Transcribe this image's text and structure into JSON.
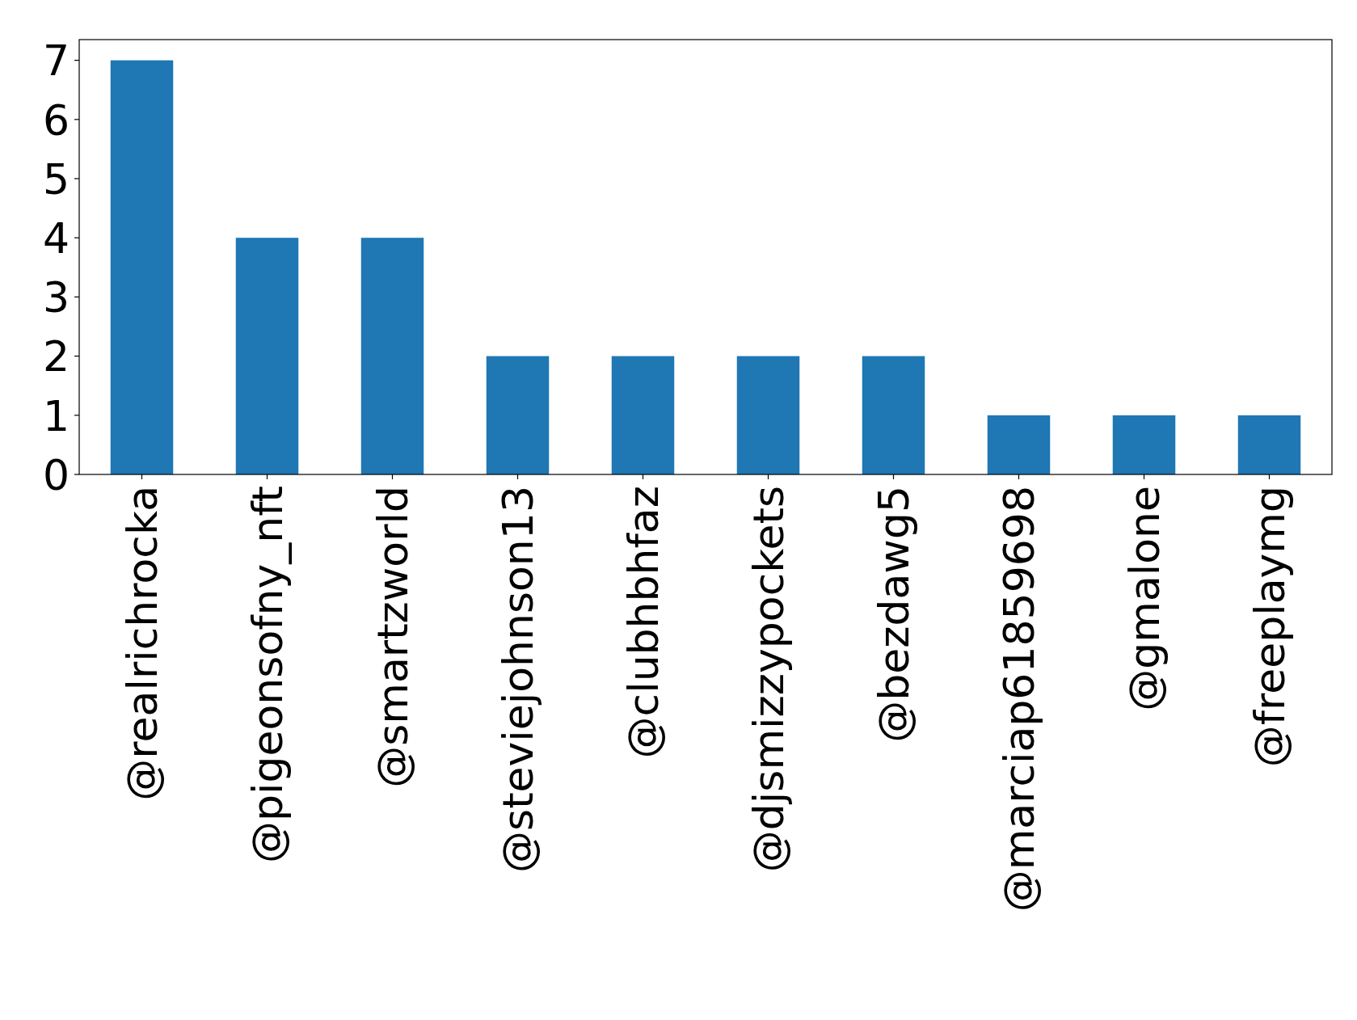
{
  "chart_data": {
    "type": "bar",
    "categories": [
      "@realrichrocka",
      "@pigeonsofny_nft",
      "@smartzworld",
      "@steviejohnson13",
      "@clubhbhfaz",
      "@djsmizzypockets",
      "@bezdawg5",
      "@marciap61859698",
      "@gmalone",
      "@freeplaymg"
    ],
    "values": [
      7,
      4,
      4,
      2,
      2,
      2,
      2,
      1,
      1,
      1
    ],
    "color": "#1f77b4",
    "ylim": [
      0,
      7.35
    ],
    "yticks": [
      0,
      1,
      2,
      3,
      4,
      5,
      6,
      7
    ],
    "grid": false
  }
}
